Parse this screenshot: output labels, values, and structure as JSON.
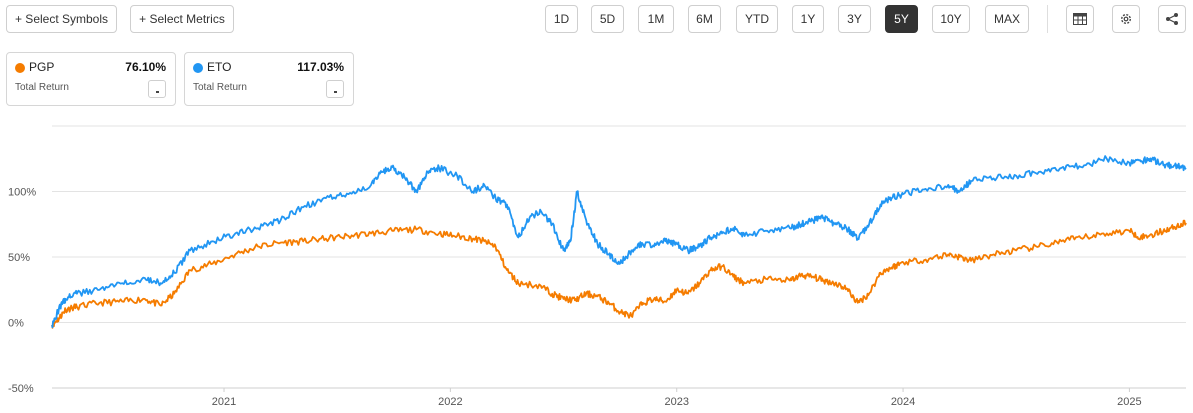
{
  "toolbar": {
    "select_symbols": "+ Select Symbols",
    "select_metrics": "+ Select Metrics",
    "ranges": [
      "1D",
      "5D",
      "1M",
      "6M",
      "YTD",
      "1Y",
      "3Y",
      "5Y",
      "10Y",
      "MAX"
    ],
    "active_range": "5Y",
    "icons": [
      "table-icon",
      "gear-icon",
      "share-icon"
    ]
  },
  "cards": [
    {
      "symbol": "PGP",
      "return": "76.10%",
      "metric": "Total Return",
      "color": "#F57C00"
    },
    {
      "symbol": "ETO",
      "return": "117.03%",
      "metric": "Total Return",
      "color": "#2196F3"
    }
  ],
  "chart_data": {
    "type": "line",
    "title": "",
    "xlabel": "",
    "ylabel": "",
    "ylim": [
      -50,
      150
    ],
    "y_ticks": [
      -50,
      0,
      50,
      100
    ],
    "y_tick_labels": [
      "-50%",
      "0%",
      "50%",
      "100%"
    ],
    "x_ticks": [
      2021,
      2022,
      2023,
      2024,
      2025
    ],
    "x_tick_labels": [
      "2021",
      "2022",
      "2023",
      "2024",
      "2025"
    ],
    "xlim": [
      2020.24,
      2025.25
    ],
    "grid": true,
    "series": [
      {
        "name": "PGP",
        "color": "#F57C00",
        "x": [
          2020.24,
          2020.27,
          2020.3,
          2020.35,
          2020.45,
          2020.55,
          2020.65,
          2020.72,
          2020.78,
          2020.85,
          2020.95,
          2021.05,
          2021.15,
          2021.25,
          2021.35,
          2021.45,
          2021.55,
          2021.65,
          2021.75,
          2021.85,
          2021.95,
          2022.03,
          2022.1,
          2022.15,
          2022.2,
          2022.25,
          2022.3,
          2022.4,
          2022.45,
          2022.5,
          2022.55,
          2022.6,
          2022.65,
          2022.7,
          2022.75,
          2022.8,
          2022.85,
          2022.9,
          2022.95,
          2023.0,
          2023.05,
          2023.1,
          2023.15,
          2023.2,
          2023.25,
          2023.3,
          2023.4,
          2023.5,
          2023.55,
          2023.6,
          2023.65,
          2023.7,
          2023.75,
          2023.8,
          2023.85,
          2023.9,
          2023.95,
          2024.0,
          2024.1,
          2024.2,
          2024.25,
          2024.3,
          2024.4,
          2024.5,
          2024.6,
          2024.7,
          2024.8,
          2024.9,
          2025.0,
          2025.05,
          2025.1,
          2025.15,
          2025.2,
          2025.25
        ],
        "y": [
          -2,
          3,
          10,
          12,
          15,
          16,
          18,
          13,
          22,
          40,
          45,
          52,
          58,
          61,
          62,
          64,
          66,
          68,
          70,
          71,
          68,
          66,
          64,
          62,
          58,
          40,
          30,
          28,
          22,
          18,
          17,
          22,
          20,
          15,
          8,
          5,
          15,
          18,
          16,
          25,
          22,
          30,
          40,
          43,
          35,
          30,
          33,
          32,
          36,
          35,
          32,
          30,
          26,
          15,
          22,
          38,
          42,
          46,
          48,
          52,
          50,
          47,
          52,
          55,
          58,
          62,
          65,
          68,
          70,
          65,
          67,
          70,
          73,
          76
        ]
      },
      {
        "name": "ETO",
        "color": "#2196F3",
        "x": [
          2020.24,
          2020.27,
          2020.3,
          2020.35,
          2020.45,
          2020.55,
          2020.65,
          2020.72,
          2020.78,
          2020.85,
          2020.95,
          2021.05,
          2021.15,
          2021.25,
          2021.35,
          2021.45,
          2021.55,
          2021.65,
          2021.7,
          2021.75,
          2021.8,
          2021.85,
          2021.9,
          2021.95,
          2022.03,
          2022.1,
          2022.15,
          2022.2,
          2022.25,
          2022.3,
          2022.35,
          2022.4,
          2022.45,
          2022.5,
          2022.53,
          2022.56,
          2022.6,
          2022.65,
          2022.7,
          2022.75,
          2022.8,
          2022.85,
          2022.9,
          2022.95,
          2023.0,
          2023.05,
          2023.1,
          2023.15,
          2023.2,
          2023.25,
          2023.3,
          2023.4,
          2023.5,
          2023.55,
          2023.6,
          2023.65,
          2023.7,
          2023.75,
          2023.8,
          2023.85,
          2023.9,
          2023.95,
          2024.0,
          2024.1,
          2024.2,
          2024.25,
          2024.3,
          2024.4,
          2024.5,
          2024.6,
          2024.7,
          2024.8,
          2024.9,
          2025.0,
          2025.05,
          2025.1,
          2025.15,
          2025.2,
          2025.25
        ],
        "y": [
          -2,
          10,
          18,
          22,
          25,
          30,
          34,
          30,
          38,
          55,
          62,
          68,
          72,
          78,
          88,
          95,
          98,
          105,
          115,
          118,
          110,
          100,
          115,
          118,
          112,
          100,
          105,
          95,
          90,
          65,
          80,
          85,
          75,
          55,
          62,
          100,
          78,
          60,
          52,
          45,
          55,
          60,
          58,
          62,
          60,
          55,
          58,
          65,
          68,
          72,
          66,
          70,
          72,
          75,
          78,
          80,
          75,
          72,
          64,
          75,
          90,
          95,
          98,
          102,
          105,
          100,
          108,
          110,
          112,
          115,
          118,
          120,
          125,
          122,
          123,
          125,
          120,
          120,
          117
        ]
      }
    ]
  }
}
